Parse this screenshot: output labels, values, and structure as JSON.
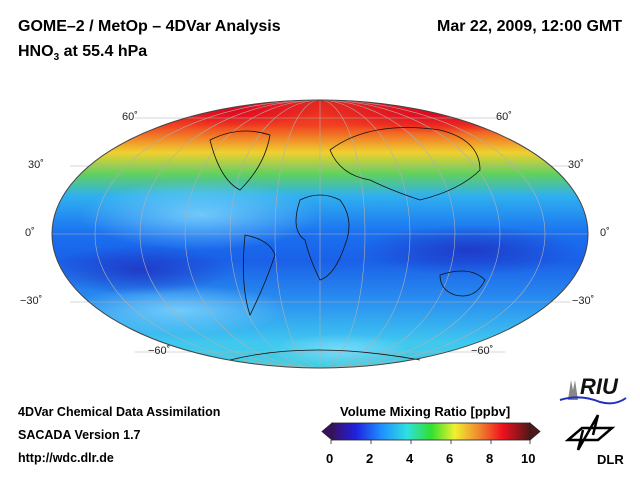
{
  "header": {
    "title": "GOME–2 / MetOp – 4DVar Analysis",
    "species_main": "HNO",
    "species_sub": "3",
    "species_rest": " at 55.4 hPa",
    "datetime": "Mar 22, 2009, 12:00 GMT"
  },
  "map": {
    "projection": "Hammer global",
    "lat_labels": [
      "60˚",
      "30˚",
      "0˚",
      "−30˚",
      "−60˚"
    ]
  },
  "colorbar": {
    "title": "Volume Mixing Ratio [ppbv]",
    "ticks": [
      "0",
      "2",
      "4",
      "6",
      "8",
      "10"
    ],
    "range": [
      0,
      10
    ],
    "colors": [
      "#3a1060",
      "#2020e0",
      "#1e90ff",
      "#30e0e0",
      "#30e030",
      "#f0f030",
      "#f08030",
      "#f01020",
      "#501818"
    ]
  },
  "footer": {
    "line1": "4DVar Chemical Data Assimilation",
    "line2": "SACADA Version 1.7",
    "line3": "http://wdc.dlr.de"
  },
  "logos": {
    "riu": "RIU",
    "dlr": "DLR"
  }
}
